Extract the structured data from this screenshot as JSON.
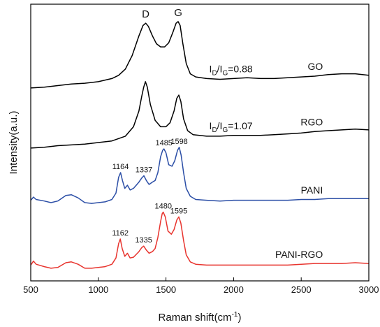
{
  "chart_data": {
    "type": "line",
    "xlabel": "Raman shift(cm",
    "xlabel_sup": "-1",
    "xlabel_close": ")",
    "ylabel": "Intensity(a.u.)",
    "xlim": [
      500,
      3000
    ],
    "x_ticks": [
      500,
      1000,
      1500,
      2000,
      2500,
      3000
    ],
    "y_ticks_shown": false,
    "grid": false,
    "legend": "none",
    "band_labels": [
      {
        "text": "D",
        "x": 1350
      },
      {
        "text": "G",
        "x": 1590
      }
    ],
    "ratio_annotations": [
      {
        "series": "GO",
        "prefix": "I",
        "sub1": "D",
        "slash": "/I",
        "sub2": "G",
        "value": "=0.88"
      },
      {
        "series": "RGO",
        "prefix": "I",
        "sub1": "D",
        "slash": "/I",
        "sub2": "G",
        "value": "=1.07"
      }
    ],
    "series": [
      {
        "name": "GO",
        "color": "#000000",
        "offset": 2.25,
        "points": [
          [
            500,
            0.04
          ],
          [
            600,
            0.05
          ],
          [
            700,
            0.07
          ],
          [
            800,
            0.09
          ],
          [
            900,
            0.1
          ],
          [
            1000,
            0.12
          ],
          [
            1100,
            0.16
          ],
          [
            1150,
            0.2
          ],
          [
            1200,
            0.28
          ],
          [
            1250,
            0.45
          ],
          [
            1300,
            0.7
          ],
          [
            1330,
            0.83
          ],
          [
            1350,
            0.86
          ],
          [
            1370,
            0.82
          ],
          [
            1400,
            0.7
          ],
          [
            1430,
            0.6
          ],
          [
            1460,
            0.56
          ],
          [
            1490,
            0.56
          ],
          [
            1520,
            0.61
          ],
          [
            1550,
            0.74
          ],
          [
            1575,
            0.86
          ],
          [
            1590,
            0.88
          ],
          [
            1605,
            0.83
          ],
          [
            1625,
            0.6
          ],
          [
            1650,
            0.35
          ],
          [
            1680,
            0.22
          ],
          [
            1720,
            0.18
          ],
          [
            1800,
            0.16
          ],
          [
            1900,
            0.15
          ],
          [
            2000,
            0.16
          ],
          [
            2100,
            0.17
          ],
          [
            2200,
            0.16
          ],
          [
            2300,
            0.16
          ],
          [
            2400,
            0.17
          ],
          [
            2500,
            0.18
          ],
          [
            2600,
            0.19
          ],
          [
            2700,
            0.21
          ],
          [
            2800,
            0.22
          ],
          [
            2900,
            0.22
          ],
          [
            3000,
            0.2
          ]
        ]
      },
      {
        "name": "RGO",
        "color": "#000000",
        "offset": 1.5,
        "points": [
          [
            500,
            0.03
          ],
          [
            600,
            0.04
          ],
          [
            700,
            0.06
          ],
          [
            800,
            0.07
          ],
          [
            900,
            0.08
          ],
          [
            1000,
            0.1
          ],
          [
            1100,
            0.12
          ],
          [
            1200,
            0.18
          ],
          [
            1260,
            0.3
          ],
          [
            1300,
            0.5
          ],
          [
            1320,
            0.68
          ],
          [
            1335,
            0.8
          ],
          [
            1348,
            0.87
          ],
          [
            1362,
            0.8
          ],
          [
            1385,
            0.58
          ],
          [
            1420,
            0.38
          ],
          [
            1460,
            0.3
          ],
          [
            1500,
            0.3
          ],
          [
            1530,
            0.35
          ],
          [
            1560,
            0.5
          ],
          [
            1580,
            0.66
          ],
          [
            1595,
            0.7
          ],
          [
            1610,
            0.62
          ],
          [
            1630,
            0.4
          ],
          [
            1660,
            0.25
          ],
          [
            1700,
            0.2
          ],
          [
            1800,
            0.18
          ],
          [
            1900,
            0.18
          ],
          [
            2000,
            0.19
          ],
          [
            2100,
            0.19
          ],
          [
            2200,
            0.19
          ],
          [
            2300,
            0.2
          ],
          [
            2400,
            0.21
          ],
          [
            2500,
            0.22
          ],
          [
            2600,
            0.24
          ],
          [
            2700,
            0.25
          ],
          [
            2800,
            0.26
          ],
          [
            2900,
            0.27
          ],
          [
            3000,
            0.26
          ]
        ]
      },
      {
        "name": "PANI",
        "color": "#2b4ea6",
        "offset": 0.82,
        "peak_labels": [
          {
            "x": 1164,
            "label": "1164"
          },
          {
            "x": 1337,
            "label": "1337"
          },
          {
            "x": 1485,
            "label": "1485"
          },
          {
            "x": 1598,
            "label": "1598"
          }
        ],
        "points": [
          [
            500,
            0.05
          ],
          [
            520,
            0.09
          ],
          [
            540,
            0.06
          ],
          [
            600,
            0.04
          ],
          [
            650,
            0.02
          ],
          [
            700,
            0.04
          ],
          [
            760,
            0.11
          ],
          [
            800,
            0.12
          ],
          [
            850,
            0.08
          ],
          [
            900,
            0.02
          ],
          [
            950,
            0.01
          ],
          [
            1000,
            0.02
          ],
          [
            1050,
            0.03
          ],
          [
            1100,
            0.06
          ],
          [
            1130,
            0.14
          ],
          [
            1150,
            0.34
          ],
          [
            1164,
            0.4
          ],
          [
            1178,
            0.3
          ],
          [
            1195,
            0.2
          ],
          [
            1215,
            0.24
          ],
          [
            1235,
            0.18
          ],
          [
            1260,
            0.2
          ],
          [
            1300,
            0.28
          ],
          [
            1320,
            0.33
          ],
          [
            1337,
            0.36
          ],
          [
            1355,
            0.3
          ],
          [
            1375,
            0.25
          ],
          [
            1400,
            0.28
          ],
          [
            1420,
            0.3
          ],
          [
            1440,
            0.4
          ],
          [
            1460,
            0.6
          ],
          [
            1475,
            0.68
          ],
          [
            1485,
            0.7
          ],
          [
            1500,
            0.65
          ],
          [
            1520,
            0.5
          ],
          [
            1545,
            0.48
          ],
          [
            1565,
            0.55
          ],
          [
            1585,
            0.68
          ],
          [
            1598,
            0.72
          ],
          [
            1612,
            0.62
          ],
          [
            1630,
            0.4
          ],
          [
            1650,
            0.2
          ],
          [
            1680,
            0.1
          ],
          [
            1720,
            0.06
          ],
          [
            1800,
            0.05
          ],
          [
            1900,
            0.04
          ],
          [
            2000,
            0.05
          ],
          [
            2100,
            0.05
          ],
          [
            2200,
            0.05
          ],
          [
            2300,
            0.05
          ],
          [
            2400,
            0.05
          ],
          [
            2500,
            0.06
          ],
          [
            2600,
            0.06
          ],
          [
            2700,
            0.07
          ],
          [
            2800,
            0.07
          ],
          [
            2900,
            0.07
          ],
          [
            3000,
            0.07
          ]
        ]
      },
      {
        "name": "PANI-RGO",
        "color": "#e8342e",
        "offset": 0.0,
        "peak_labels": [
          {
            "x": 1162,
            "label": "1162"
          },
          {
            "x": 1335,
            "label": "1335"
          },
          {
            "x": 1480,
            "label": "1480"
          },
          {
            "x": 1595,
            "label": "1595"
          }
        ],
        "points": [
          [
            500,
            0.05
          ],
          [
            520,
            0.1
          ],
          [
            540,
            0.06
          ],
          [
            600,
            0.03
          ],
          [
            650,
            0.01
          ],
          [
            700,
            0.02
          ],
          [
            760,
            0.08
          ],
          [
            800,
            0.09
          ],
          [
            850,
            0.06
          ],
          [
            900,
            0.01
          ],
          [
            950,
            0.01
          ],
          [
            1000,
            0.02
          ],
          [
            1050,
            0.03
          ],
          [
            1100,
            0.06
          ],
          [
            1130,
            0.14
          ],
          [
            1150,
            0.32
          ],
          [
            1162,
            0.38
          ],
          [
            1176,
            0.26
          ],
          [
            1195,
            0.16
          ],
          [
            1215,
            0.2
          ],
          [
            1235,
            0.14
          ],
          [
            1260,
            0.15
          ],
          [
            1300,
            0.22
          ],
          [
            1320,
            0.27
          ],
          [
            1335,
            0.29
          ],
          [
            1355,
            0.24
          ],
          [
            1375,
            0.2
          ],
          [
            1400,
            0.22
          ],
          [
            1420,
            0.26
          ],
          [
            1440,
            0.4
          ],
          [
            1460,
            0.6
          ],
          [
            1472,
            0.7
          ],
          [
            1480,
            0.72
          ],
          [
            1495,
            0.66
          ],
          [
            1515,
            0.48
          ],
          [
            1540,
            0.44
          ],
          [
            1560,
            0.5
          ],
          [
            1580,
            0.62
          ],
          [
            1595,
            0.66
          ],
          [
            1610,
            0.58
          ],
          [
            1630,
            0.36
          ],
          [
            1650,
            0.18
          ],
          [
            1680,
            0.09
          ],
          [
            1720,
            0.06
          ],
          [
            1800,
            0.05
          ],
          [
            1900,
            0.05
          ],
          [
            2000,
            0.05
          ],
          [
            2100,
            0.05
          ],
          [
            2200,
            0.05
          ],
          [
            2300,
            0.05
          ],
          [
            2400,
            0.05
          ],
          [
            2500,
            0.06
          ],
          [
            2600,
            0.07
          ],
          [
            2700,
            0.07
          ],
          [
            2800,
            0.07
          ],
          [
            2900,
            0.08
          ],
          [
            3000,
            0.07
          ]
        ]
      }
    ]
  }
}
